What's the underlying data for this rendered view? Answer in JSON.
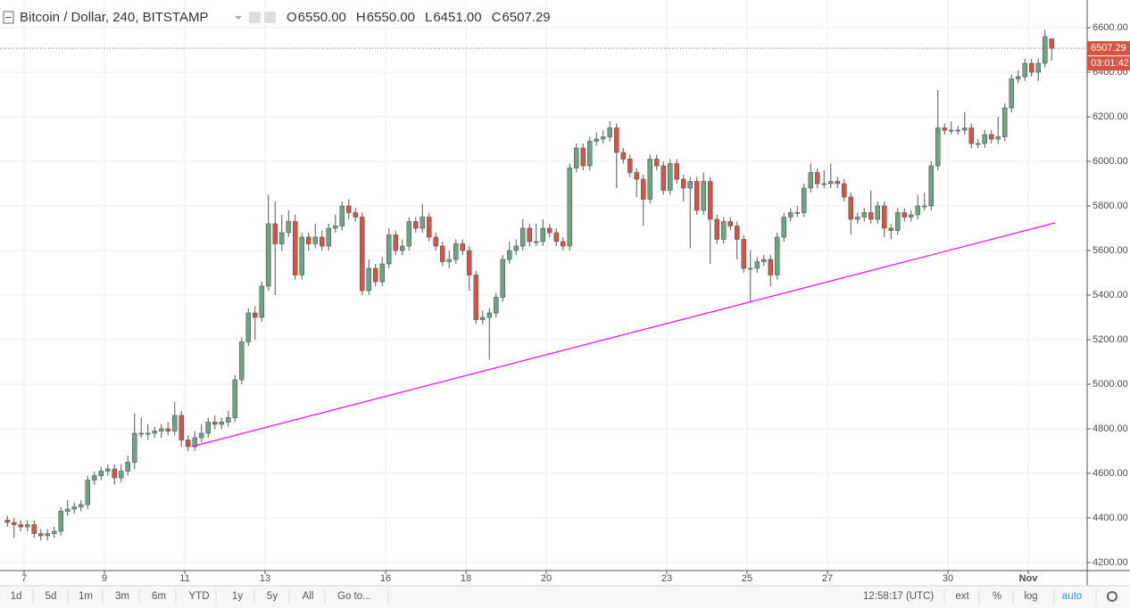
{
  "chart_data": {
    "type": "candlestick",
    "title": "Bitcoin / Dollar, 240, BITSTAMP",
    "ohlc_keys": [
      "O",
      "H",
      "L",
      "C"
    ],
    "ohlc_values": [
      "6550.00",
      "6550.00",
      "6451.00",
      "6507.29"
    ],
    "countdown": "03:01:42",
    "up_color": "#6ba583",
    "down_color": "#d75442",
    "x": [
      -12,
      -8,
      -4,
      0,
      4,
      8,
      12,
      16,
      20,
      24,
      28,
      32,
      36,
      40,
      44,
      48,
      52,
      56,
      60,
      64,
      68,
      72,
      76,
      80,
      84,
      88,
      92,
      96,
      100,
      104,
      108,
      112,
      116,
      120,
      124,
      128,
      132,
      136,
      140,
      144,
      148,
      152,
      156,
      160,
      164,
      168,
      172,
      176,
      180,
      184,
      188,
      192,
      196,
      200,
      204,
      208,
      212,
      216,
      220,
      224,
      228,
      232,
      236,
      240,
      244,
      248,
      252,
      256,
      260,
      264,
      268,
      272,
      276,
      280,
      284,
      288,
      292,
      296,
      300,
      304,
      308,
      312,
      316,
      320,
      324,
      328,
      332,
      336,
      340,
      344,
      348,
      352,
      356,
      360,
      364,
      368,
      372,
      376,
      380,
      384,
      388,
      392,
      396,
      400,
      404,
      408,
      412,
      416,
      420,
      424,
      428,
      432,
      436,
      440,
      444,
      448,
      452,
      456,
      460,
      464,
      468,
      472,
      476,
      480,
      484,
      488,
      492,
      496,
      500,
      504,
      508,
      512,
      516,
      520,
      524,
      528,
      532,
      536,
      540,
      544,
      548,
      552,
      556,
      560,
      564,
      568,
      572,
      576,
      580,
      584,
      588,
      592,
      596,
      600,
      604,
      608,
      612
    ],
    "open": [
      4390,
      4380,
      4370,
      4360,
      4370,
      4330,
      4320,
      4330,
      4340,
      4430,
      4440,
      4450,
      4460,
      4570,
      4590,
      4610,
      4620,
      4580,
      4610,
      4650,
      4780,
      4780,
      4780,
      4790,
      4800,
      4790,
      4860,
      4750,
      4720,
      4760,
      4780,
      4830,
      4820,
      4830,
      4850,
      5020,
      5190,
      5320,
      5300,
      5440,
      5720,
      5630,
      5680,
      5730,
      5490,
      5660,
      5630,
      5660,
      5620,
      5700,
      5710,
      5800,
      5770,
      5750,
      5420,
      5520,
      5460,
      5540,
      5670,
      5600,
      5620,
      5730,
      5700,
      5750,
      5660,
      5620,
      5550,
      5560,
      5630,
      5600,
      5490,
      5290,
      5300,
      5320,
      5390,
      5560,
      5600,
      5620,
      5700,
      5640,
      5640,
      5700,
      5680,
      5640,
      5620,
      5970,
      6060,
      5980,
      6090,
      6100,
      6110,
      6150,
      6040,
      6010,
      5950,
      5920,
      5830,
      6010,
      5980,
      5870,
      5990,
      5920,
      5880,
      5910,
      5780,
      5910,
      5740,
      5650,
      5730,
      5710,
      5650,
      5520,
      5520,
      5550,
      5560,
      5490,
      5660,
      5750,
      5770,
      5770,
      5880,
      5950,
      5900,
      5900,
      5910,
      5900,
      5840,
      5740,
      5750,
      5770,
      5740,
      5800,
      5700,
      5690,
      5770,
      5750,
      5760,
      5800,
      5800,
      5980,
      6150,
      6140,
      6140,
      6140,
      6150,
      6080,
      6080,
      6120,
      6100,
      6110,
      6240,
      6370,
      6380,
      6440,
      6400,
      6440,
      6550
    ],
    "high": [
      4410,
      4400,
      4390,
      4390,
      4390,
      4350,
      4350,
      4360,
      4450,
      4480,
      4470,
      4480,
      4590,
      4610,
      4630,
      4640,
      4640,
      4640,
      4680,
      4870,
      4850,
      4820,
      4810,
      4820,
      4830,
      4920,
      4880,
      4770,
      4790,
      4820,
      4850,
      4860,
      4850,
      4880,
      5040,
      5210,
      5340,
      5350,
      5460,
      5850,
      5820,
      5760,
      5780,
      5760,
      5680,
      5680,
      5720,
      5690,
      5720,
      5760,
      5820,
      5830,
      5790,
      5770,
      5560,
      5540,
      5570,
      5700,
      5690,
      5650,
      5750,
      5750,
      5810,
      5770,
      5680,
      5640,
      5600,
      5650,
      5650,
      5620,
      5510,
      5330,
      5340,
      5410,
      5580,
      5640,
      5650,
      5740,
      5720,
      5720,
      5740,
      5720,
      5700,
      5660,
      5990,
      6080,
      6080,
      6110,
      6130,
      6140,
      6180,
      6170,
      6060,
      6030,
      5970,
      5940,
      6030,
      6030,
      6000,
      6010,
      6010,
      5940,
      5930,
      5930,
      5950,
      5930,
      5760,
      5750,
      5750,
      5730,
      5670,
      5600,
      5570,
      5580,
      5580,
      5680,
      5770,
      5790,
      5800,
      5900,
      5990,
      5970,
      5960,
      5990,
      5930,
      5920,
      5860,
      5770,
      5790,
      5870,
      5820,
      5820,
      5720,
      5790,
      5790,
      5780,
      5850,
      5860,
      6000,
      6320,
      6170,
      6180,
      6160,
      6220,
      6170,
      6100,
      6140,
      6140,
      6200,
      6260,
      6390,
      6410,
      6460,
      6460,
      6460,
      6590,
      6550
    ],
    "low": [
      4360,
      4310,
      4340,
      4340,
      4310,
      4300,
      4300,
      4310,
      4320,
      4410,
      4420,
      4430,
      4440,
      4550,
      4570,
      4590,
      4550,
      4560,
      4590,
      4620,
      4760,
      4750,
      4760,
      4760,
      4770,
      4770,
      4720,
      4700,
      4700,
      4740,
      4760,
      4800,
      4800,
      4810,
      4830,
      5000,
      5170,
      5200,
      5280,
      5420,
      5400,
      5600,
      5660,
      5470,
      5470,
      5600,
      5610,
      5600,
      5600,
      5680,
      5690,
      5740,
      5730,
      5400,
      5400,
      5440,
      5440,
      5520,
      5580,
      5580,
      5600,
      5680,
      5680,
      5640,
      5600,
      5530,
      5520,
      5540,
      5580,
      5420,
      5270,
      5270,
      5110,
      5300,
      5370,
      5540,
      5580,
      5600,
      5620,
      5620,
      5620,
      5660,
      5620,
      5600,
      5600,
      5950,
      5960,
      5960,
      6070,
      6080,
      6090,
      5880,
      5990,
      5930,
      5840,
      5710,
      5810,
      5960,
      5850,
      5850,
      5900,
      5820,
      5610,
      5760,
      5760,
      5540,
      5630,
      5630,
      5690,
      5560,
      5500,
      5370,
      5500,
      5530,
      5440,
      5470,
      5640,
      5730,
      5750,
      5750,
      5860,
      5880,
      5880,
      5880,
      5880,
      5820,
      5670,
      5720,
      5730,
      5720,
      5720,
      5660,
      5650,
      5670,
      5730,
      5730,
      5740,
      5780,
      5780,
      5960,
      6120,
      6120,
      6120,
      6120,
      6060,
      6060,
      6060,
      6080,
      6080,
      6090,
      6220,
      6350,
      6360,
      6380,
      6360,
      6420,
      6451
    ],
    "close": [
      4380,
      4370,
      4360,
      4370,
      4330,
      4320,
      4330,
      4340,
      4430,
      4440,
      4450,
      4460,
      4570,
      4590,
      4610,
      4620,
      4580,
      4610,
      4650,
      4780,
      4780,
      4780,
      4790,
      4800,
      4790,
      4860,
      4750,
      4720,
      4760,
      4780,
      4830,
      4820,
      4830,
      4850,
      5020,
      5190,
      5320,
      5300,
      5440,
      5720,
      5630,
      5680,
      5730,
      5490,
      5660,
      5630,
      5660,
      5620,
      5700,
      5710,
      5800,
      5770,
      5750,
      5420,
      5520,
      5460,
      5540,
      5670,
      5600,
      5620,
      5730,
      5700,
      5750,
      5660,
      5620,
      5550,
      5560,
      5630,
      5600,
      5490,
      5290,
      5300,
      5320,
      5390,
      5560,
      5600,
      5620,
      5700,
      5640,
      5640,
      5700,
      5680,
      5640,
      5620,
      5970,
      6060,
      5980,
      6090,
      6100,
      6110,
      6150,
      6040,
      6010,
      5950,
      5920,
      5830,
      6010,
      5980,
      5870,
      5990,
      5920,
      5880,
      5910,
      5780,
      5910,
      5740,
      5650,
      5730,
      5710,
      5650,
      5520,
      5520,
      5550,
      5560,
      5490,
      5660,
      5750,
      5770,
      5770,
      5880,
      5950,
      5900,
      5900,
      5910,
      5900,
      5840,
      5740,
      5750,
      5770,
      5740,
      5800,
      5700,
      5690,
      5770,
      5750,
      5760,
      5800,
      5800,
      5980,
      6150,
      6140,
      6140,
      6140,
      6150,
      6080,
      6080,
      6120,
      6100,
      6110,
      6240,
      6370,
      6380,
      6440,
      6400,
      6440,
      6560,
      6507.29
    ],
    "trendline": {
      "x": [
        100,
        616
      ],
      "values": [
        4720,
        5724
      ],
      "color": "#ff00ff"
    },
    "xlim": [
      -14.4,
      635.2
    ],
    "xticks": [
      {
        "value": 0,
        "label": "7"
      },
      {
        "value": 48,
        "label": "9"
      },
      {
        "value": 96,
        "label": "11"
      },
      {
        "value": 144,
        "label": "13"
      },
      {
        "value": 216,
        "label": "16"
      },
      {
        "value": 264,
        "label": "18"
      },
      {
        "value": 312,
        "label": "20"
      },
      {
        "value": 384,
        "label": "23"
      },
      {
        "value": 432,
        "label": "25"
      },
      {
        "value": 480,
        "label": "27"
      },
      {
        "value": 552,
        "label": "30"
      },
      {
        "value": 600,
        "label": "Nov"
      }
    ],
    "ylim": [
      4164,
      6724
    ],
    "yticks": [
      {
        "value": 4200,
        "label": "4200.00"
      },
      {
        "value": 4400,
        "label": "4400.00"
      },
      {
        "value": 4600,
        "label": "4600.00"
      },
      {
        "value": 4800,
        "label": "4800.00"
      },
      {
        "value": 5000,
        "label": "5000.00"
      },
      {
        "value": 5200,
        "label": "5200.00"
      },
      {
        "value": 5400,
        "label": "5400.00"
      },
      {
        "value": 5600,
        "label": "5600.00"
      },
      {
        "value": 5800,
        "label": "5800.00"
      },
      {
        "value": 6000,
        "label": "6000.00"
      },
      {
        "value": 6200,
        "label": "6200.00"
      },
      {
        "value": 6400,
        "label": "6400.00"
      },
      {
        "value": 6600,
        "label": "6600.00"
      }
    ],
    "grid": true
  },
  "toolbar": {
    "ranges": [
      "1d",
      "5d",
      "1m",
      "3m",
      "6m",
      "YTD",
      "1y",
      "5y",
      "All"
    ],
    "goto": "Go to...",
    "time": "12:58:17 (UTC)",
    "options": [
      "ext",
      "%",
      "log",
      "auto"
    ]
  }
}
